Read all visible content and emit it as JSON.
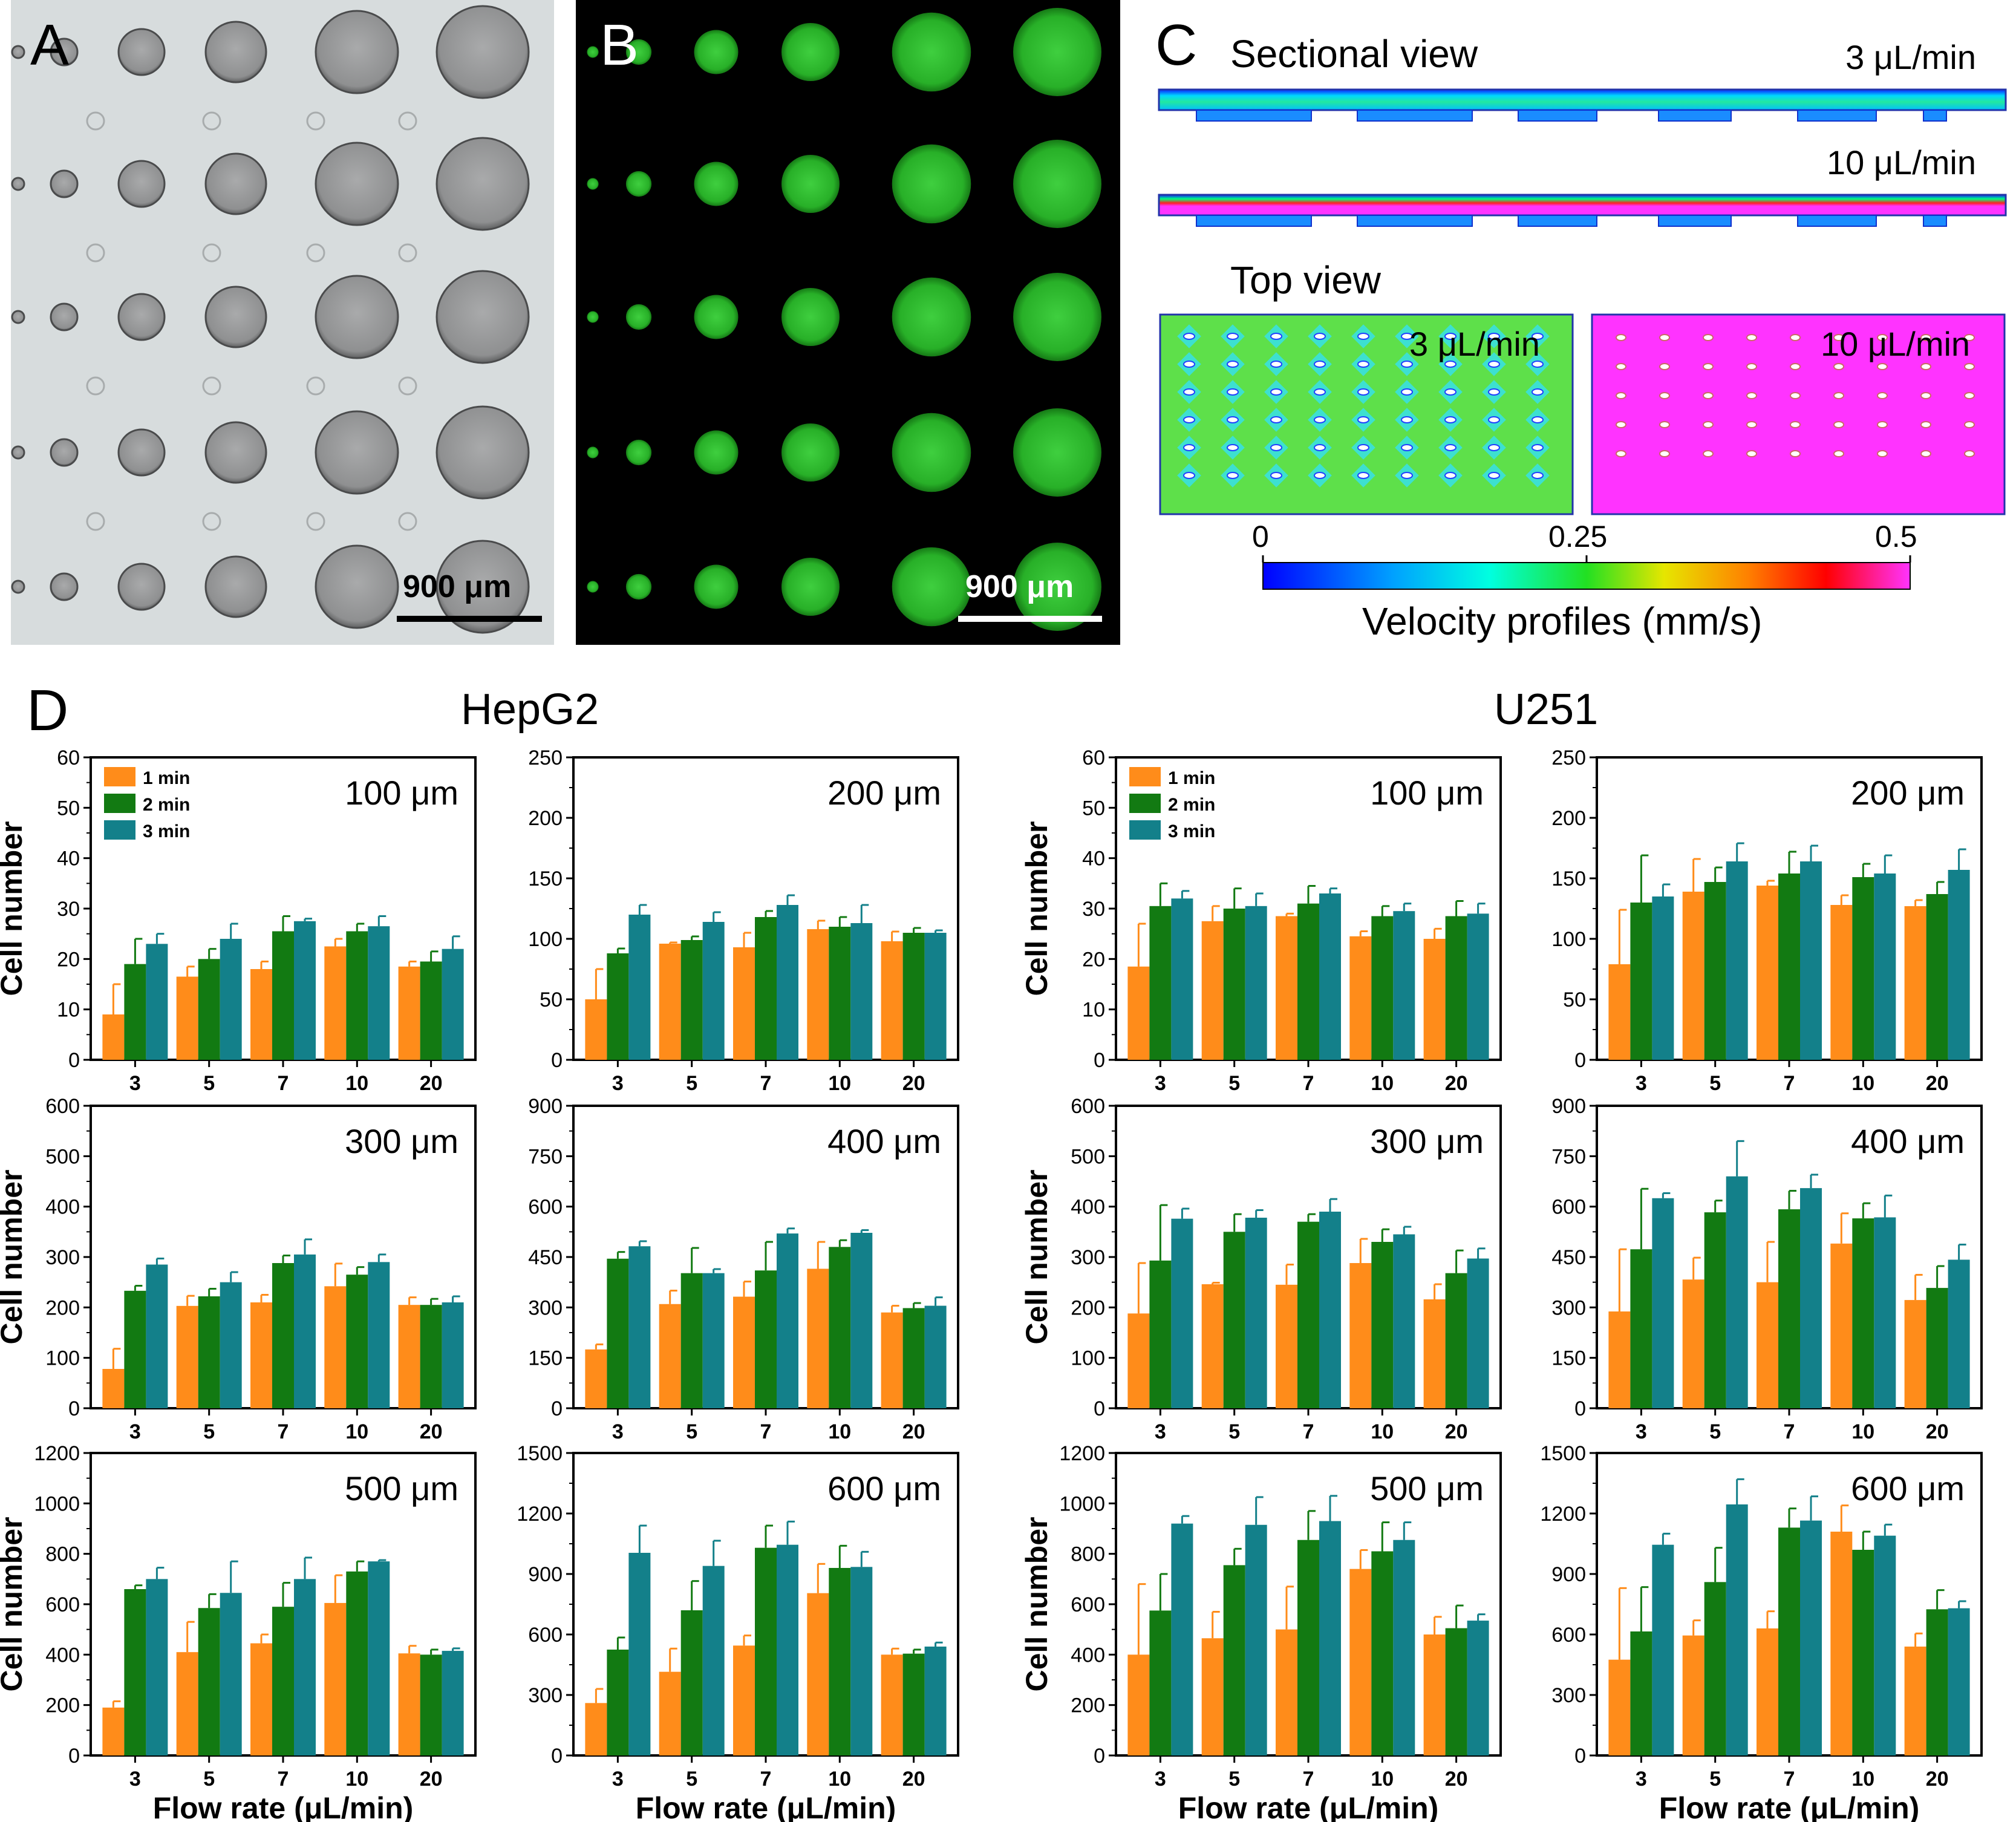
{
  "panels": {
    "A": {
      "label": "A",
      "scale_bar": "900 μm"
    },
    "B": {
      "label": "B",
      "scale_bar": "900 μm"
    },
    "C": {
      "label": "C",
      "sectional_title": "Sectional view",
      "sectional_rates": [
        "3 μL/min",
        "10 μL/min"
      ],
      "top_title": "Top view",
      "top_rates": [
        "3 μL/min",
        "10 μL/min"
      ],
      "colorbar_ticks": [
        "0",
        "0.25",
        "0.5"
      ],
      "colorbar_label": "Velocity profiles (mm/s)"
    },
    "D": {
      "label": "D",
      "group_titles": [
        "HepG2",
        "U251"
      ]
    }
  },
  "colors": {
    "1 min": "#ff8c1a",
    "2 min": "#127a12",
    "3 min": "#13808a"
  },
  "chart_data": [
    {
      "type": "bar",
      "title": "100 μm",
      "group": "HepG2",
      "ylabel": "Cell number",
      "xlabel": "",
      "ylim": [
        0,
        60
      ],
      "yticks": [
        "0",
        "10",
        "20",
        "30",
        "40",
        "50",
        "60"
      ],
      "categories": [
        "3",
        "5",
        "7",
        "10",
        "20"
      ],
      "legend": "top-left",
      "series": [
        {
          "name": "1 min",
          "values": [
            9,
            16.5,
            18,
            22.5,
            18.5
          ],
          "errors": [
            6,
            2,
            1.5,
            1.5,
            1
          ]
        },
        {
          "name": "2 min",
          "values": [
            19,
            20,
            25.5,
            25.5,
            19.5
          ],
          "errors": [
            5,
            2,
            3,
            1.5,
            2
          ]
        },
        {
          "name": "3 min",
          "values": [
            23,
            24,
            27.5,
            26.5,
            22
          ],
          "errors": [
            2,
            3,
            0.5,
            2,
            2.5
          ]
        }
      ]
    },
    {
      "type": "bar",
      "title": "200 μm",
      "group": "HepG2",
      "ylabel": "",
      "xlabel": "",
      "ylim": [
        0,
        250
      ],
      "yticks": [
        "0",
        "50",
        "100",
        "150",
        "200",
        "250"
      ],
      "categories": [
        "3",
        "5",
        "7",
        "10",
        "20"
      ],
      "series": [
        {
          "name": "1 min",
          "values": [
            50,
            96,
            93,
            108,
            98
          ],
          "errors": [
            25,
            1,
            12,
            7,
            8
          ]
        },
        {
          "name": "2 min",
          "values": [
            88,
            99,
            118,
            110,
            105
          ],
          "errors": [
            4,
            3,
            5,
            8,
            4
          ]
        },
        {
          "name": "3 min",
          "values": [
            120,
            114,
            128,
            113,
            105
          ],
          "errors": [
            8,
            8,
            8,
            15,
            2
          ]
        }
      ]
    },
    {
      "type": "bar",
      "title": "100 μm",
      "group": "U251",
      "ylabel": "Cell number",
      "xlabel": "",
      "ylim": [
        0,
        60
      ],
      "yticks": [
        "0",
        "10",
        "20",
        "30",
        "40",
        "50",
        "60"
      ],
      "categories": [
        "3",
        "5",
        "7",
        "10",
        "20"
      ],
      "legend": "top-left",
      "series": [
        {
          "name": "1 min",
          "values": [
            18.5,
            27.5,
            28.5,
            24.5,
            24
          ],
          "errors": [
            8.5,
            3,
            0.5,
            1,
            2
          ]
        },
        {
          "name": "2 min",
          "values": [
            30.5,
            30,
            31,
            28.5,
            28.5
          ],
          "errors": [
            4.5,
            4,
            3.5,
            2,
            3
          ]
        },
        {
          "name": "3 min",
          "values": [
            32,
            30.5,
            33,
            29.5,
            29
          ],
          "errors": [
            1.5,
            2.5,
            1,
            1.5,
            2
          ]
        }
      ]
    },
    {
      "type": "bar",
      "title": "200 μm",
      "group": "U251",
      "ylabel": "",
      "xlabel": "",
      "ylim": [
        0,
        250
      ],
      "yticks": [
        "0",
        "50",
        "100",
        "150",
        "200",
        "250"
      ],
      "categories": [
        "3",
        "5",
        "7",
        "10",
        "20"
      ],
      "series": [
        {
          "name": "1 min",
          "values": [
            79,
            139,
            144,
            128,
            127
          ],
          "errors": [
            45,
            27,
            4,
            8,
            5
          ]
        },
        {
          "name": "2 min",
          "values": [
            130,
            147,
            154,
            151,
            137
          ],
          "errors": [
            39,
            12,
            18,
            11,
            10
          ]
        },
        {
          "name": "3 min",
          "values": [
            135,
            164,
            164,
            154,
            157
          ],
          "errors": [
            10,
            15,
            13,
            15,
            17
          ]
        }
      ]
    },
    {
      "type": "bar",
      "title": "300 μm",
      "group": "HepG2",
      "ylabel": "Cell number",
      "xlabel": "",
      "ylim": [
        0,
        600
      ],
      "yticks": [
        "0",
        "100",
        "200",
        "300",
        "400",
        "500",
        "600"
      ],
      "categories": [
        "3",
        "5",
        "7",
        "10",
        "20"
      ],
      "series": [
        {
          "name": "1 min",
          "values": [
            78,
            203,
            210,
            242,
            205
          ],
          "errors": [
            40,
            20,
            15,
            45,
            15
          ]
        },
        {
          "name": "2 min",
          "values": [
            233,
            222,
            288,
            265,
            205
          ],
          "errors": [
            10,
            15,
            15,
            15,
            12
          ]
        },
        {
          "name": "3 min",
          "values": [
            285,
            250,
            305,
            290,
            210
          ],
          "errors": [
            12,
            20,
            30,
            15,
            12
          ]
        }
      ]
    },
    {
      "type": "bar",
      "title": "400 μm",
      "group": "HepG2",
      "ylabel": "",
      "xlabel": "",
      "ylim": [
        0,
        900
      ],
      "yticks": [
        "0",
        "150",
        "300",
        "450",
        "600",
        "750",
        "900"
      ],
      "categories": [
        "3",
        "5",
        "7",
        "10",
        "20"
      ],
      "series": [
        {
          "name": "1 min",
          "values": [
            175,
            310,
            332,
            415,
            285
          ],
          "errors": [
            15,
            40,
            45,
            80,
            20
          ]
        },
        {
          "name": "2 min",
          "values": [
            445,
            402,
            410,
            480,
            298
          ],
          "errors": [
            20,
            75,
            85,
            20,
            15
          ]
        },
        {
          "name": "3 min",
          "values": [
            482,
            402,
            520,
            522,
            305
          ],
          "errors": [
            15,
            12,
            15,
            8,
            25
          ]
        }
      ]
    },
    {
      "type": "bar",
      "title": "300 μm",
      "group": "U251",
      "ylabel": "Cell number",
      "xlabel": "",
      "ylim": [
        0,
        600
      ],
      "yticks": [
        "0",
        "100",
        "200",
        "300",
        "400",
        "500",
        "600"
      ],
      "categories": [
        "3",
        "5",
        "7",
        "10",
        "20"
      ],
      "series": [
        {
          "name": "1 min",
          "values": [
            188,
            246,
            245,
            288,
            216
          ],
          "errors": [
            100,
            3,
            40,
            48,
            30
          ]
        },
        {
          "name": "2 min",
          "values": [
            293,
            350,
            370,
            330,
            268
          ],
          "errors": [
            110,
            35,
            15,
            25,
            45
          ]
        },
        {
          "name": "3 min",
          "values": [
            376,
            378,
            390,
            345,
            297
          ],
          "errors": [
            20,
            15,
            25,
            15,
            20
          ]
        }
      ]
    },
    {
      "type": "bar",
      "title": "400 μm",
      "group": "U251",
      "ylabel": "",
      "xlabel": "",
      "ylim": [
        0,
        900
      ],
      "yticks": [
        "0",
        "150",
        "300",
        "450",
        "600",
        "750",
        "900"
      ],
      "categories": [
        "3",
        "5",
        "7",
        "10",
        "20"
      ],
      "series": [
        {
          "name": "1 min",
          "values": [
            288,
            383,
            375,
            490,
            322
          ],
          "errors": [
            185,
            65,
            120,
            90,
            75
          ]
        },
        {
          "name": "2 min",
          "values": [
            473,
            583,
            592,
            565,
            358
          ],
          "errors": [
            180,
            35,
            55,
            45,
            65
          ]
        },
        {
          "name": "3 min",
          "values": [
            625,
            690,
            655,
            568,
            442
          ],
          "errors": [
            15,
            105,
            40,
            65,
            45
          ]
        }
      ]
    },
    {
      "type": "bar",
      "title": "500 μm",
      "group": "HepG2",
      "ylabel": "Cell number",
      "xlabel": "Flow rate (μL/min)",
      "ylim": [
        0,
        1200
      ],
      "yticks": [
        "0",
        "200",
        "400",
        "600",
        "800",
        "1000",
        "1200"
      ],
      "categories": [
        "3",
        "5",
        "7",
        "10",
        "20"
      ],
      "series": [
        {
          "name": "1 min",
          "values": [
            190,
            410,
            445,
            605,
            405
          ],
          "errors": [
            25,
            120,
            35,
            110,
            30
          ]
        },
        {
          "name": "2 min",
          "values": [
            660,
            585,
            590,
            730,
            400
          ],
          "errors": [
            15,
            55,
            95,
            40,
            20
          ]
        },
        {
          "name": "3 min",
          "values": [
            700,
            645,
            700,
            770,
            415
          ],
          "errors": [
            45,
            125,
            85,
            5,
            10
          ]
        }
      ]
    },
    {
      "type": "bar",
      "title": "600 μm",
      "group": "HepG2",
      "ylabel": "",
      "xlabel": "Flow rate (μL/min)",
      "ylim": [
        0,
        1500
      ],
      "yticks": [
        "0",
        "300",
        "600",
        "900",
        "1200",
        "1500"
      ],
      "categories": [
        "3",
        "5",
        "7",
        "10",
        "20"
      ],
      "series": [
        {
          "name": "1 min",
          "values": [
            260,
            415,
            545,
            805,
            500
          ],
          "errors": [
            70,
            115,
            50,
            145,
            30
          ]
        },
        {
          "name": "2 min",
          "values": [
            525,
            720,
            1030,
            930,
            505
          ],
          "errors": [
            60,
            145,
            110,
            110,
            20
          ]
        },
        {
          "name": "3 min",
          "values": [
            1005,
            940,
            1045,
            935,
            540
          ],
          "errors": [
            135,
            125,
            115,
            75,
            20
          ]
        }
      ]
    },
    {
      "type": "bar",
      "title": "500 μm",
      "group": "U251",
      "ylabel": "Cell number",
      "xlabel": "Flow rate (μL/min)",
      "ylim": [
        0,
        1200
      ],
      "yticks": [
        "0",
        "200",
        "400",
        "600",
        "800",
        "1000",
        "1200"
      ],
      "categories": [
        "3",
        "5",
        "7",
        "10",
        "20"
      ],
      "series": [
        {
          "name": "1 min",
          "values": [
            400,
            465,
            500,
            740,
            480
          ],
          "errors": [
            280,
            105,
            170,
            75,
            70
          ]
        },
        {
          "name": "2 min",
          "values": [
            575,
            755,
            855,
            810,
            505
          ],
          "errors": [
            145,
            65,
            115,
            115,
            90
          ]
        },
        {
          "name": "3 min",
          "values": [
            920,
            915,
            930,
            855,
            535
          ],
          "errors": [
            30,
            110,
            100,
            70,
            25
          ]
        }
      ]
    },
    {
      "type": "bar",
      "title": "600 μm",
      "group": "U251",
      "ylabel": "",
      "xlabel": "Flow rate (μL/min)",
      "ylim": [
        0,
        1500
      ],
      "yticks": [
        "0",
        "300",
        "600",
        "900",
        "1200",
        "1500"
      ],
      "categories": [
        "3",
        "5",
        "7",
        "10",
        "20"
      ],
      "series": [
        {
          "name": "1 min",
          "values": [
            475,
            595,
            630,
            1110,
            540
          ],
          "errors": [
            355,
            75,
            85,
            130,
            65
          ]
        },
        {
          "name": "2 min",
          "values": [
            615,
            860,
            1130,
            1020,
            725
          ],
          "errors": [
            220,
            170,
            95,
            90,
            95
          ]
        },
        {
          "name": "3 min",
          "values": [
            1045,
            1245,
            1165,
            1090,
            730
          ],
          "errors": [
            55,
            125,
            120,
            55,
            35
          ]
        }
      ]
    }
  ]
}
